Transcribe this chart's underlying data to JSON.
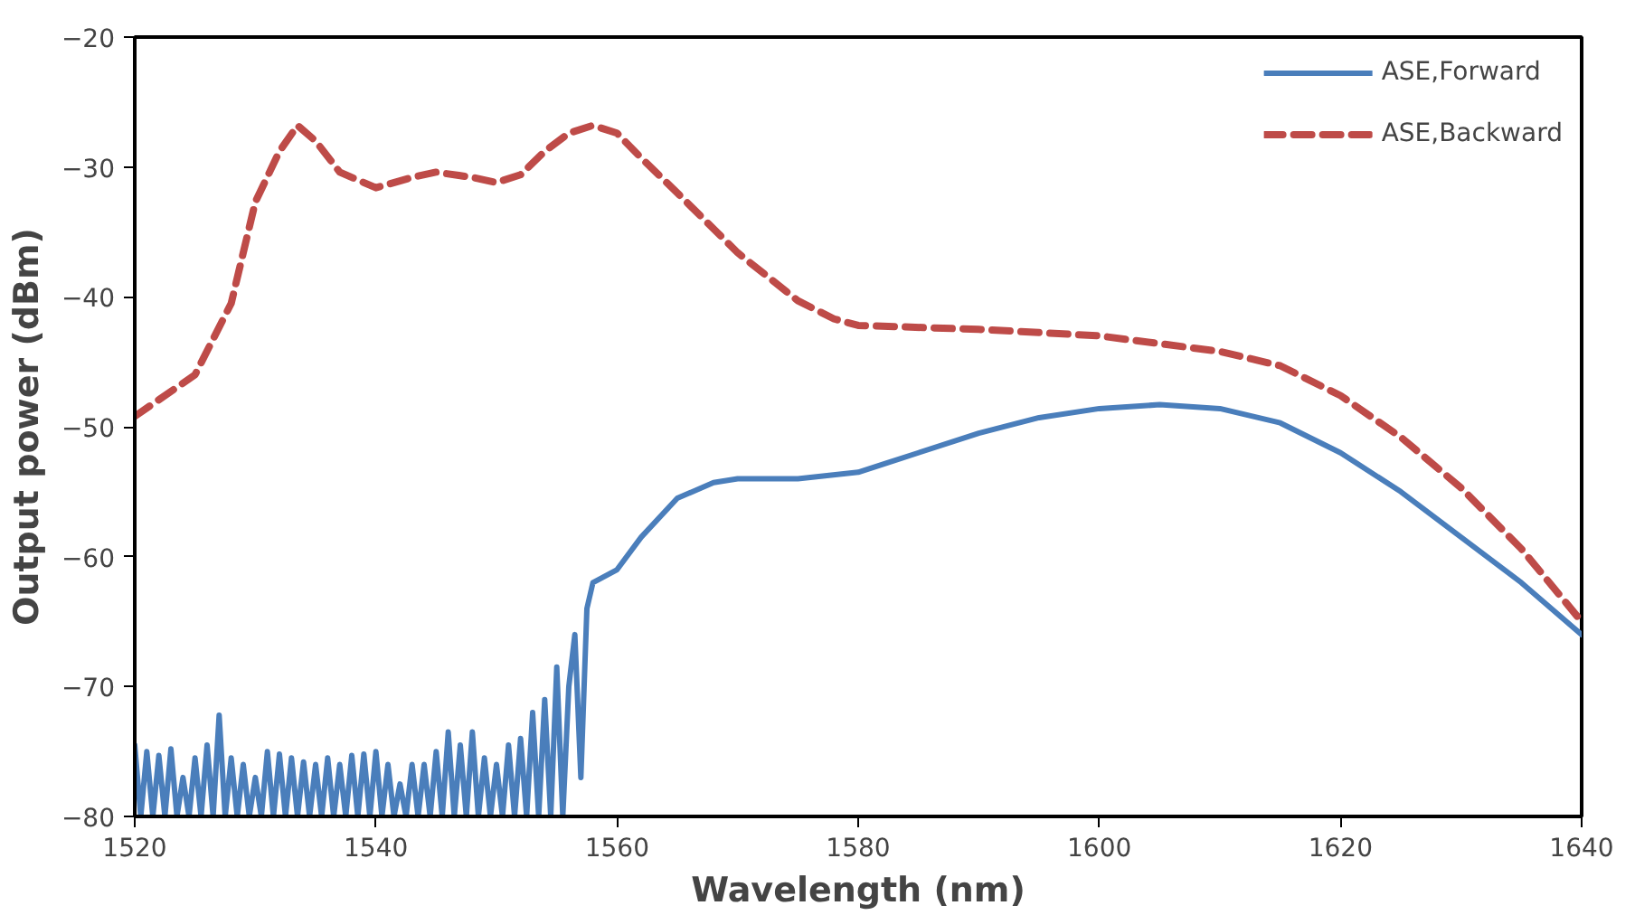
{
  "chart_data": {
    "type": "line",
    "xlabel": "Wavelength (nm)",
    "ylabel": "Output power (dBm)",
    "xlim": [
      1520,
      1640
    ],
    "xticks": [
      1520,
      1540,
      1560,
      1580,
      1600,
      1620,
      1640
    ],
    "ylim": [
      -80,
      -20
    ],
    "yticks": [
      -80,
      -70,
      -60,
      -50,
      -40,
      -30,
      -20
    ],
    "grid": false,
    "legend": "top right",
    "marker": "none",
    "series": [
      {
        "name": "ASE,Forward",
        "color": "#4a7ebb",
        "line_style": "solid",
        "x": [
          1520,
          1520.5,
          1521,
          1521.5,
          1522,
          1522.5,
          1523,
          1523.5,
          1524,
          1524.5,
          1525,
          1525.5,
          1526,
          1526.5,
          1527,
          1527.5,
          1528,
          1528.5,
          1529,
          1529.5,
          1530,
          1530.5,
          1531,
          1531.5,
          1532,
          1532.5,
          1533,
          1533.5,
          1534,
          1534.5,
          1535,
          1535.5,
          1536,
          1536.5,
          1537,
          1537.5,
          1538,
          1538.5,
          1539,
          1539.5,
          1540,
          1540.5,
          1541,
          1541.5,
          1542,
          1542.5,
          1543,
          1543.5,
          1544,
          1544.5,
          1545,
          1545.5,
          1546,
          1546.5,
          1547,
          1547.5,
          1548,
          1548.5,
          1549,
          1549.5,
          1550,
          1550.5,
          1551,
          1551.5,
          1552,
          1552.5,
          1553,
          1553.5,
          1554,
          1554.5,
          1555,
          1555.5,
          1556,
          1556.5,
          1557,
          1557.5,
          1558,
          1560,
          1562,
          1565,
          1568,
          1570,
          1575,
          1580,
          1585,
          1590,
          1595,
          1600,
          1605,
          1610,
          1615,
          1620,
          1625,
          1630,
          1635,
          1640
        ],
        "values": [
          -74.5,
          -80,
          -75,
          -80,
          -75.3,
          -80,
          -74.8,
          -80,
          -77,
          -80,
          -75.5,
          -80,
          -74.5,
          -80,
          -72.2,
          -80,
          -75.5,
          -80,
          -76,
          -80,
          -77,
          -80,
          -75,
          -80,
          -75.2,
          -80,
          -75.5,
          -80,
          -75.8,
          -80,
          -76,
          -80,
          -75.5,
          -80,
          -76,
          -80,
          -75.3,
          -80,
          -75.2,
          -80,
          -75,
          -80,
          -76,
          -80,
          -77.5,
          -80,
          -76,
          -80,
          -76,
          -80,
          -75,
          -80,
          -73.5,
          -80,
          -74.5,
          -80,
          -73.5,
          -80,
          -75.5,
          -80,
          -76,
          -80,
          -74.5,
          -80,
          -74,
          -80,
          -72,
          -80,
          -71,
          -80,
          -68.5,
          -80,
          -70,
          -66,
          -77,
          -64,
          -62,
          -61,
          -58.5,
          -55.5,
          -54.3,
          -54,
          -54,
          -53.5,
          -52,
          -50.5,
          -49.3,
          -48.6,
          -48.3,
          -48.6,
          -49.7,
          -52,
          -55,
          -58.5,
          -62,
          -66
        ]
      },
      {
        "name": "ASE,Backward",
        "color": "#be4b48",
        "line_style": "dashed",
        "x": [
          1520,
          1525,
          1528,
          1530,
          1532,
          1533.5,
          1535,
          1537,
          1540,
          1543,
          1545,
          1548,
          1550,
          1552,
          1554,
          1556,
          1558,
          1560,
          1562,
          1565,
          1570,
          1575,
          1578,
          1580,
          1590,
          1600,
          1610,
          1615,
          1620,
          1625,
          1630,
          1635,
          1640
        ],
        "values": [
          -49.2,
          -46,
          -40.5,
          -32.7,
          -28.8,
          -26.8,
          -28,
          -30.4,
          -31.6,
          -30.8,
          -30.4,
          -30.8,
          -31.2,
          -30.6,
          -28.8,
          -27.4,
          -26.8,
          -27.4,
          -29.3,
          -32,
          -36.6,
          -40.3,
          -41.7,
          -42.2,
          -42.5,
          -43,
          -44.2,
          -45.3,
          -47.6,
          -50.8,
          -54.7,
          -59.4,
          -65
        ]
      }
    ]
  }
}
